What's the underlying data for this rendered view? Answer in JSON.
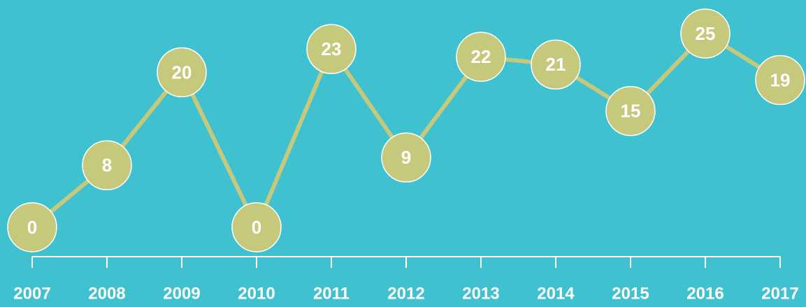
{
  "chart_data": {
    "type": "line",
    "categories": [
      "2007",
      "2008",
      "2009",
      "2010",
      "2011",
      "2012",
      "2013",
      "2014",
      "2015",
      "2016",
      "2017"
    ],
    "values": [
      0,
      8,
      20,
      0,
      23,
      9,
      22,
      21,
      15,
      25,
      19
    ],
    "color": "#c6c97c",
    "ylim": [
      0,
      25
    ]
  }
}
